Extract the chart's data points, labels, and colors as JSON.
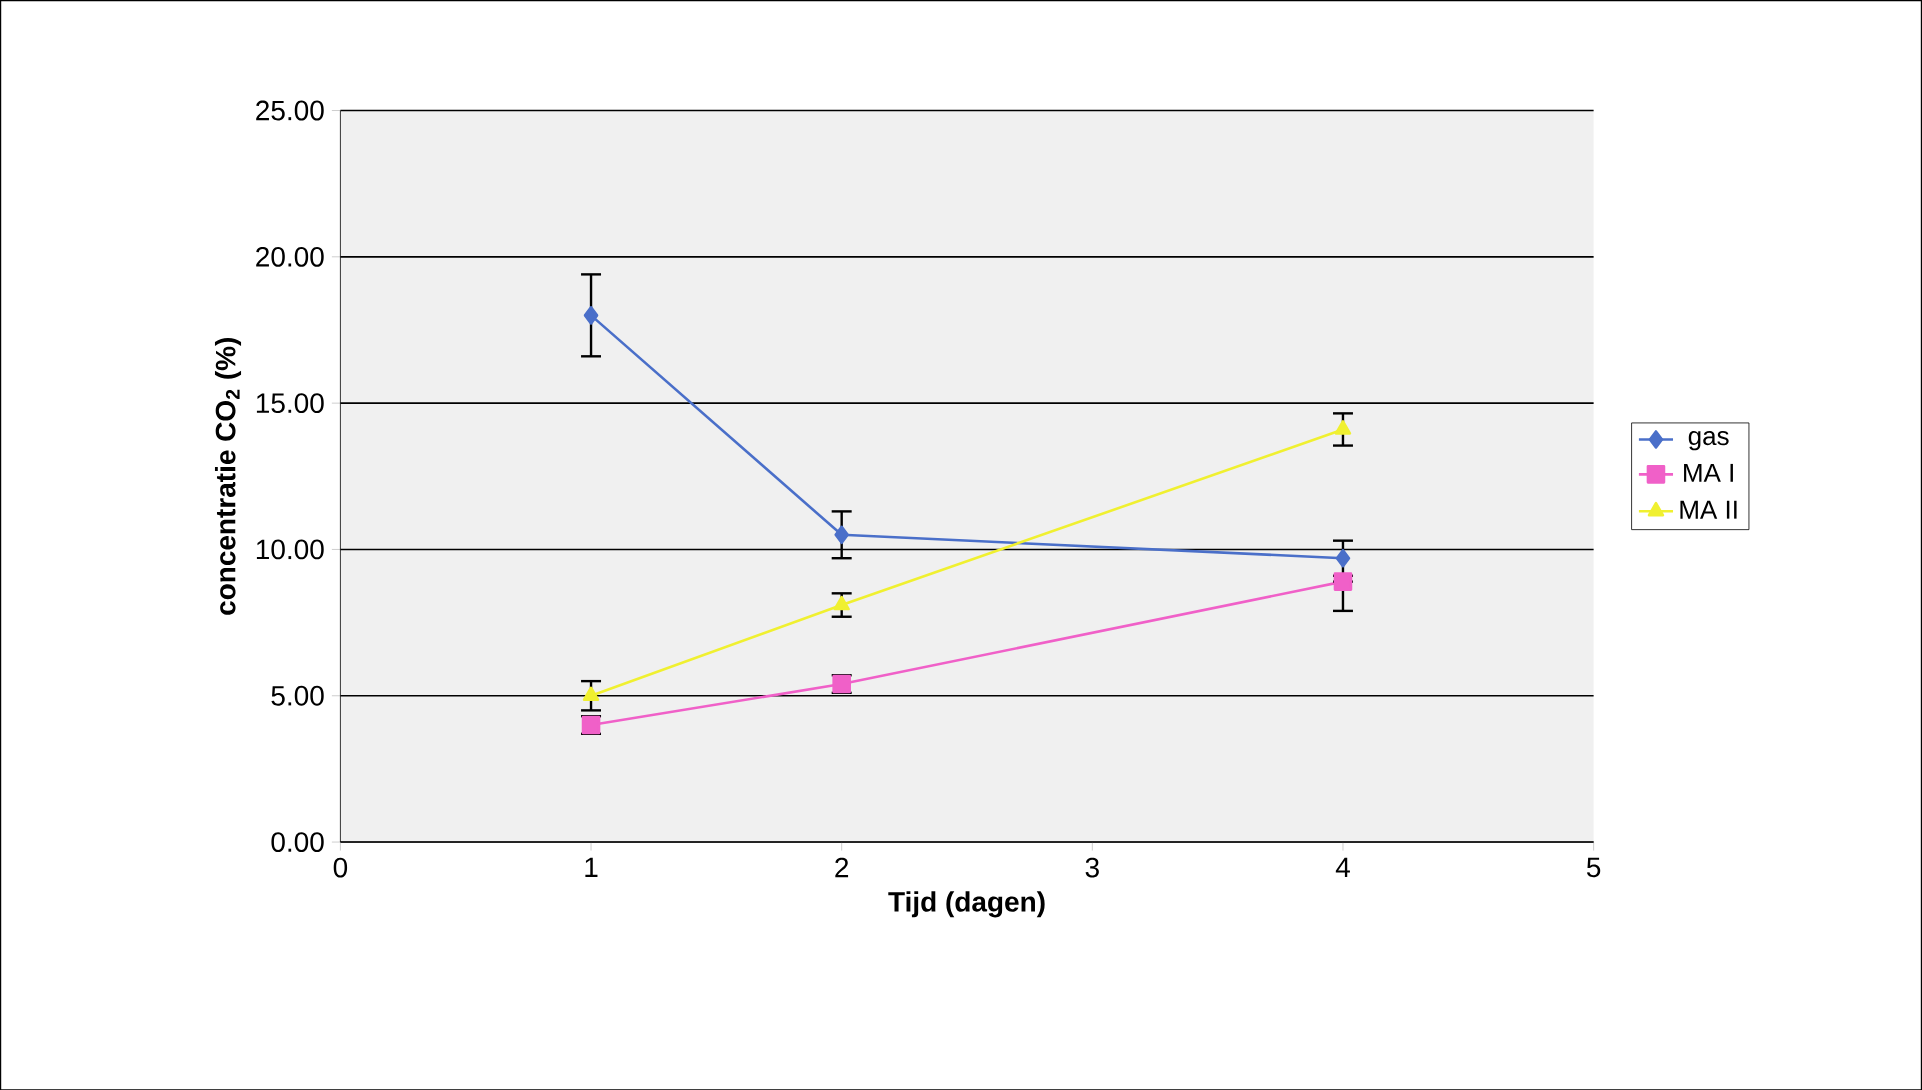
{
  "chart_data": {
    "type": "line",
    "xlabel": "Tijd (dagen)",
    "ylabel": "concentratie CO$_{2}$ (%)",
    "x": [
      1,
      2,
      4
    ],
    "series": [
      {
        "name": "gas",
        "color": "#4a6fc9",
        "marker": "diamond",
        "values": [
          18.0,
          10.5,
          9.7
        ],
        "errors": [
          1.4,
          0.8,
          0.6
        ]
      },
      {
        "name": "MA I",
        "color": "#f060c8",
        "marker": "square",
        "values": [
          4.0,
          5.4,
          8.9
        ],
        "errors": [
          0.3,
          0.3,
          [
            7.9,
            8.9
          ]
        ]
      },
      {
        "name": "MA II",
        "color": "#f0f030",
        "marker": "triangle",
        "values": [
          5.0,
          8.1,
          14.1
        ],
        "errors": [
          0.5,
          0.4,
          0.55
        ]
      }
    ],
    "xlim": [
      0,
      5
    ],
    "xticks": [
      0,
      1,
      2,
      3,
      4,
      5
    ],
    "ylim": [
      0,
      25
    ],
    "yticks": [
      {
        "value": 0,
        "label": "0.00"
      },
      {
        "value": 5,
        "label": "5.00"
      },
      {
        "value": 10,
        "label": "10.00"
      },
      {
        "value": 15,
        "label": "15.00"
      },
      {
        "value": 20,
        "label": "20.00"
      },
      {
        "value": 25,
        "label": "25.00"
      }
    ],
    "grid": "y",
    "legend": "right"
  }
}
